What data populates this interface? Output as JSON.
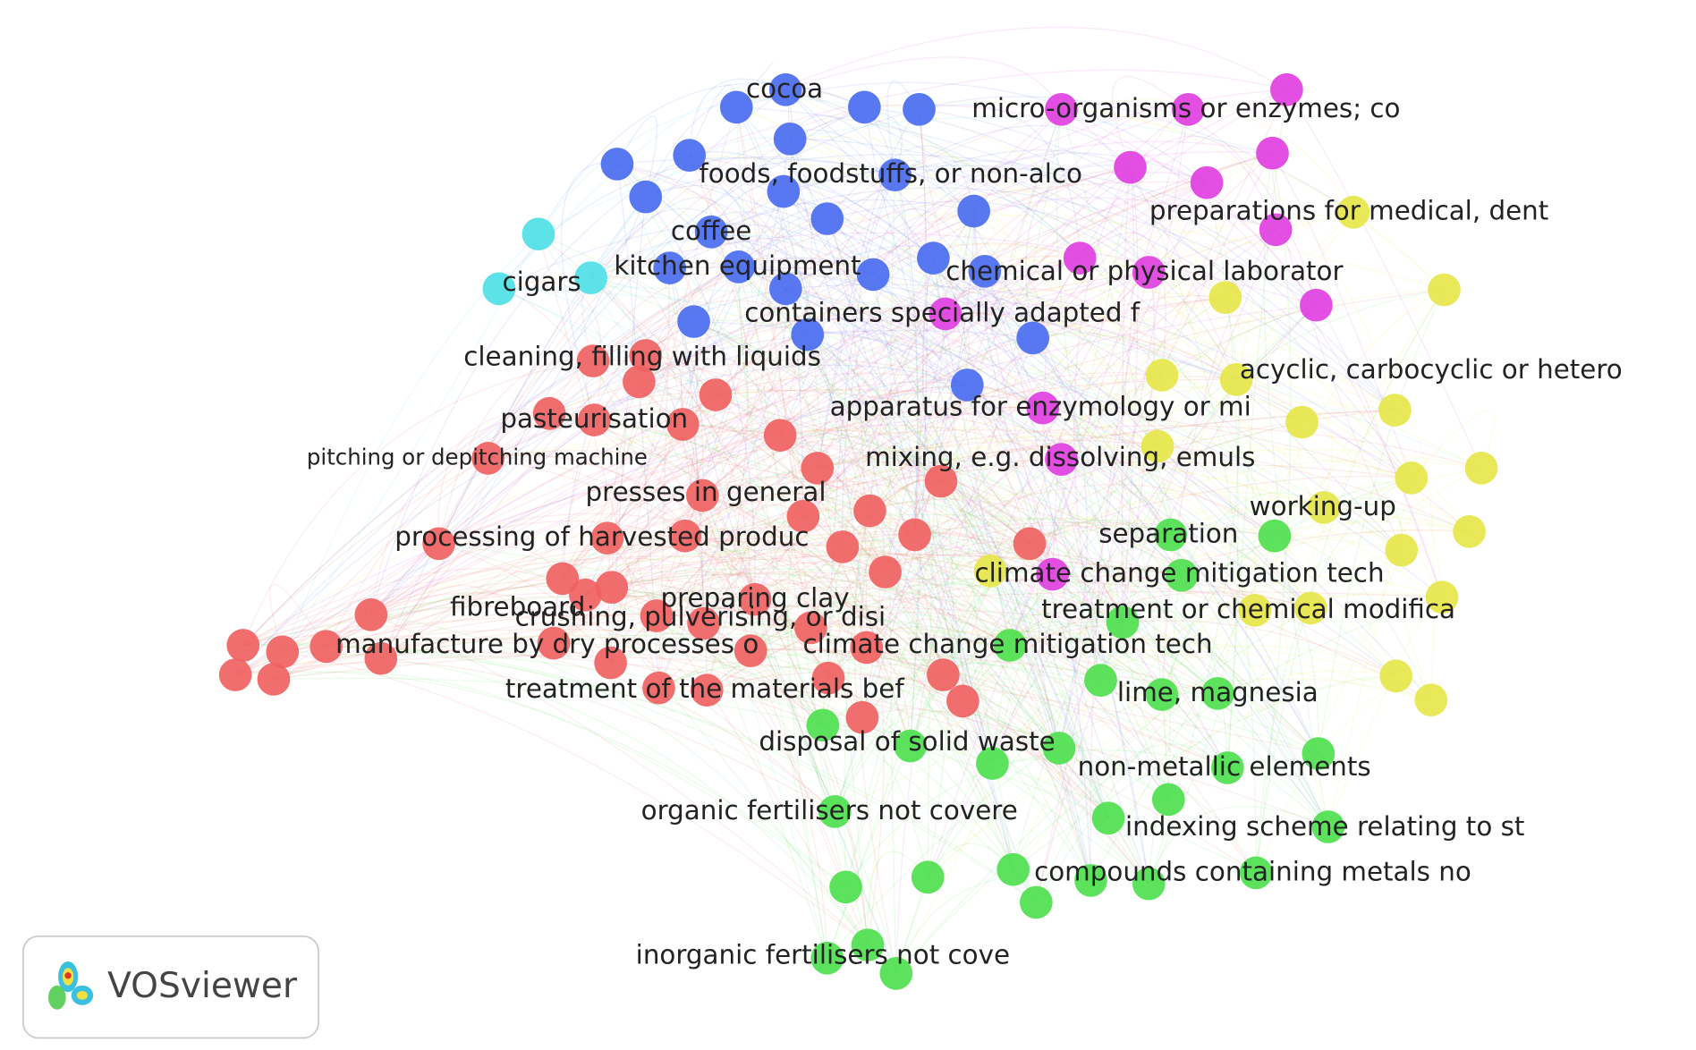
{
  "labels": [
    "cocoa",
    "micro-organisms or enzymes; co",
    "foods, foodstuffs, or non-alco",
    "preparations for medical, dent",
    "coffee",
    "kitchen equipment",
    "chemical or physical laborator",
    "cigars",
    "containers specially adapted f",
    "cleaning, filling with liquids",
    "acyclic, carbocyclic or hetero",
    "pasteurisation",
    "apparatus for enzymology or mi",
    "pitching or depitching machine",
    "mixing, e.g. dissolving, emuls",
    "presses in general",
    "working-up",
    "processing of harvested produc",
    "separation",
    "climate change mitigation tech",
    "preparing clay",
    "fibreboard",
    "treatment or chemical modifica",
    "crushing, pulverising, or disi",
    "manufacture by dry processes o",
    "climate change mitigation tech",
    "treatment of the materials bef",
    "lime, magnesia",
    "disposal of solid waste",
    "non-metallic elements",
    "organic fertilisers not covere",
    "indexing scheme relating to st",
    "compounds containing metals no",
    "inorganic fertilisers not cove"
  ],
  "logo": {
    "text": "VOSviewer"
  }
}
